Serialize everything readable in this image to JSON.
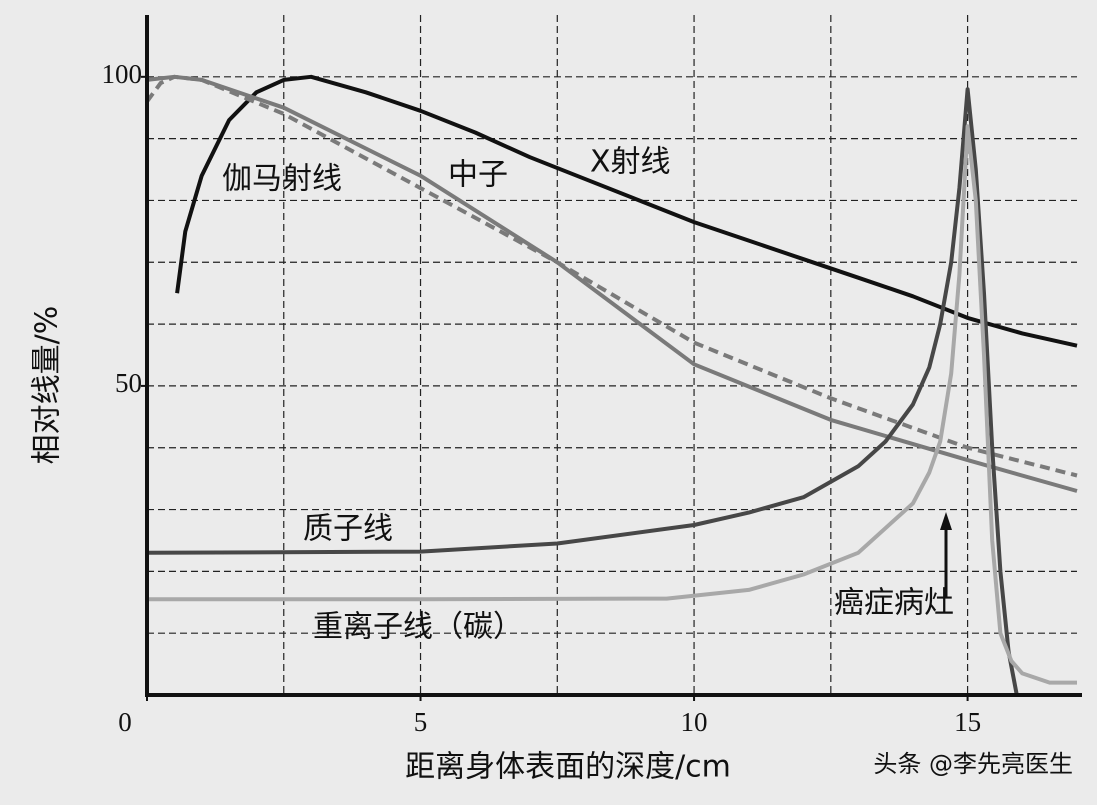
{
  "chart_data": {
    "type": "line",
    "y_label": "相对线量/%",
    "x_label": "距离身体表面的深度/cm",
    "xlim": [
      0,
      17
    ],
    "ylim": [
      0,
      110
    ],
    "xticks": [
      0,
      5,
      10,
      15
    ],
    "yticks": [
      50,
      100
    ],
    "xgrid": [
      2.5,
      5,
      7.5,
      10,
      12.5,
      15
    ],
    "ygrid": [
      10,
      20,
      30,
      40,
      50,
      60,
      70,
      80,
      90,
      100
    ],
    "grid": true,
    "series": [
      {
        "name": "X射线",
        "color": "#111111",
        "dash": false,
        "x": [
          0.55,
          0.7,
          1,
          1.5,
          2,
          2.5,
          3,
          4,
          5,
          6,
          7,
          8,
          9,
          10,
          11,
          12,
          13,
          14,
          15,
          16,
          17
        ],
        "values": [
          65,
          75,
          84,
          93,
          97.5,
          99.5,
          100,
          97.5,
          94.5,
          91,
          87,
          83.5,
          80,
          76.5,
          73.5,
          70.5,
          67.5,
          64.5,
          61,
          58.5,
          56.5
        ]
      },
      {
        "name": "伽马射线",
        "color": "#7a7a7a",
        "dash": true,
        "x": [
          0,
          0.25,
          0.5,
          1,
          2.5,
          5,
          7.5,
          10,
          12.5,
          15,
          17
        ],
        "values": [
          96,
          99,
          100,
          99.5,
          94,
          82,
          70,
          57,
          48,
          40,
          35.5
        ]
      },
      {
        "name": "中子",
        "color": "#7a7a7a",
        "dash": false,
        "x": [
          0,
          0.5,
          1,
          2.5,
          5,
          7.5,
          10,
          12.5,
          15,
          17
        ],
        "values": [
          99.5,
          100,
          99.5,
          95,
          84,
          70,
          53.5,
          44.5,
          38,
          33
        ]
      },
      {
        "name": "质子线",
        "color": "#474747",
        "dash": false,
        "x": [
          0,
          5,
          7.5,
          10,
          11,
          12,
          13,
          13.5,
          14,
          14.3,
          14.5,
          14.7,
          14.85,
          15,
          15.15,
          15.3,
          15.45,
          15.6,
          15.75,
          15.9
        ],
        "values": [
          23,
          23.2,
          24.5,
          27.5,
          29.5,
          32,
          37,
          41,
          47,
          53,
          60,
          70,
          82,
          98,
          85,
          65,
          40,
          20,
          7,
          0
        ]
      },
      {
        "name": "重离子线（碳）",
        "color": "#a8a8a8",
        "dash": false,
        "x": [
          0,
          5,
          9.5,
          11,
          12,
          13,
          14,
          14.3,
          14.5,
          14.7,
          14.85,
          15,
          15.15,
          15.3,
          15.45,
          15.6,
          15.8,
          16,
          16.5,
          17
        ],
        "values": [
          15.5,
          15.5,
          15.6,
          17,
          19.5,
          23,
          31,
          36,
          41,
          52,
          68,
          92,
          80,
          55,
          25,
          10,
          5.5,
          3.5,
          2,
          2
        ]
      }
    ],
    "annotations": [
      "癌症病灶"
    ],
    "watermark": "头条 @李先亮医生"
  }
}
